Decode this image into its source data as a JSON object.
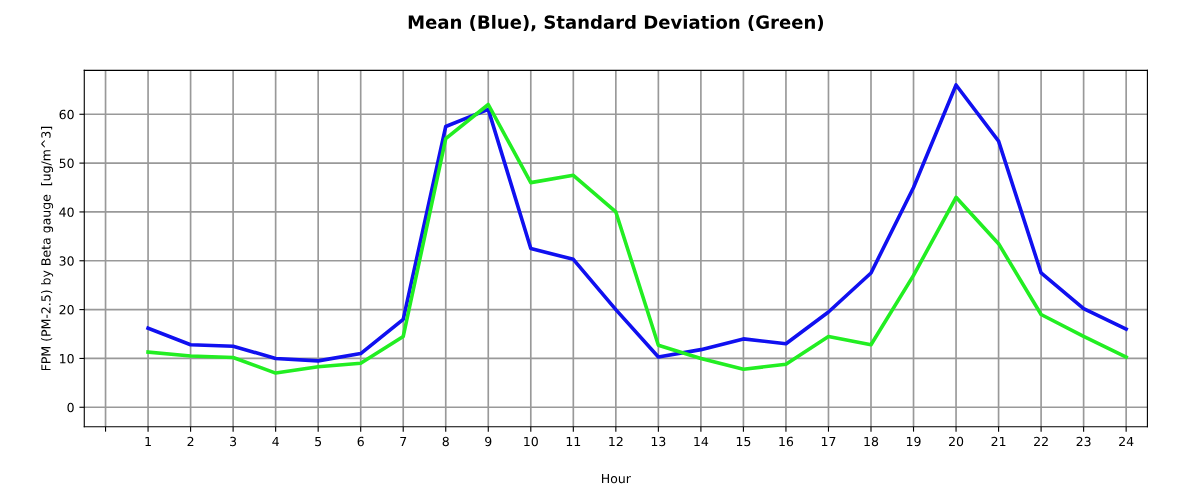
{
  "chart_data": {
    "type": "line",
    "title": "Mean (Blue), Standard Deviation (Green)",
    "xlabel": "Hour",
    "ylabel": "FPM (PM-2.5) by Beta gauge  [ug/m^3]",
    "x": [
      1,
      2,
      3,
      4,
      5,
      6,
      7,
      8,
      9,
      10,
      11,
      12,
      13,
      14,
      15,
      16,
      17,
      18,
      19,
      20,
      21,
      22,
      23,
      24
    ],
    "series": [
      {
        "color": "#1010f0",
        "values": [
          16.2,
          12.8,
          12.5,
          10,
          9.5,
          11,
          18,
          57.5,
          61,
          32.5,
          30.3,
          20,
          10.3,
          11.8,
          14,
          13,
          19.5,
          27.5,
          45,
          66,
          54.5,
          27.5,
          20.2,
          16
        ]
      },
      {
        "color": "#22ee22",
        "values": [
          11.3,
          10.5,
          10.2,
          7,
          8.3,
          9,
          14.5,
          55,
          62,
          46,
          47.5,
          40,
          12.7,
          10,
          7.8,
          8.8,
          14.5,
          12.8,
          27,
          43,
          33.5,
          19,
          14.5,
          10.3
        ]
      }
    ],
    "xlim": [
      -0.5,
      24.5
    ],
    "ylim": [
      -4,
      69
    ],
    "xticks": [
      {
        "value": 0,
        "label": null
      },
      1,
      2,
      3,
      4,
      5,
      6,
      7,
      8,
      9,
      10,
      11,
      12,
      13,
      14,
      15,
      16,
      17,
      18,
      19,
      20,
      21,
      22,
      23,
      24
    ],
    "yticks": [
      0,
      10,
      20,
      30,
      40,
      50,
      60
    ],
    "grid": true,
    "marker": "none",
    "line_style": "solid",
    "legend": false
  }
}
